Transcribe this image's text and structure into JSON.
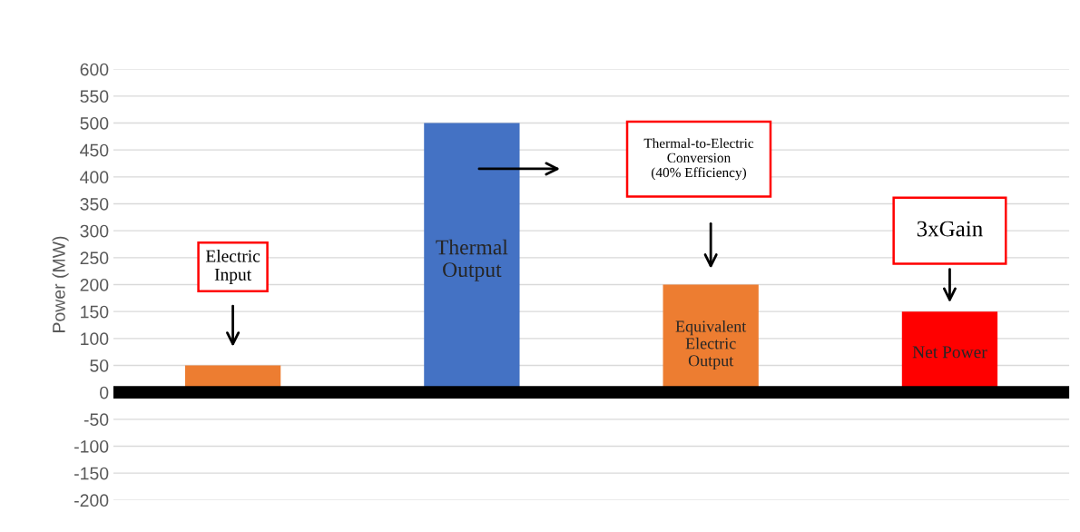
{
  "chart_data": {
    "type": "bar",
    "ylabel": "Power (MW)",
    "categories": [
      null,
      null,
      null,
      null
    ],
    "values": [
      50,
      500,
      200,
      150
    ],
    "colors": [
      "#ed7d31",
      "#4472c4",
      "#ed7d31",
      "#ff0000"
    ],
    "ylim": [
      -200,
      600
    ],
    "yticks": [
      -200,
      -150,
      -100,
      -50,
      0,
      50,
      100,
      150,
      200,
      250,
      300,
      350,
      400,
      450,
      500,
      550,
      600
    ],
    "grid": "y",
    "tick_labels": "y",
    "ref_lines": [
      {
        "axis": "y",
        "value": 0,
        "color": "#000000"
      }
    ],
    "annotations": [
      "Electric\nInput",
      "Thermal\nOutput",
      "Thermal-to-Electric\nConversion\n(40% Efficiency)",
      "Equivalent\nElectric\nOutput",
      "3xGain",
      "Net Power"
    ]
  }
}
